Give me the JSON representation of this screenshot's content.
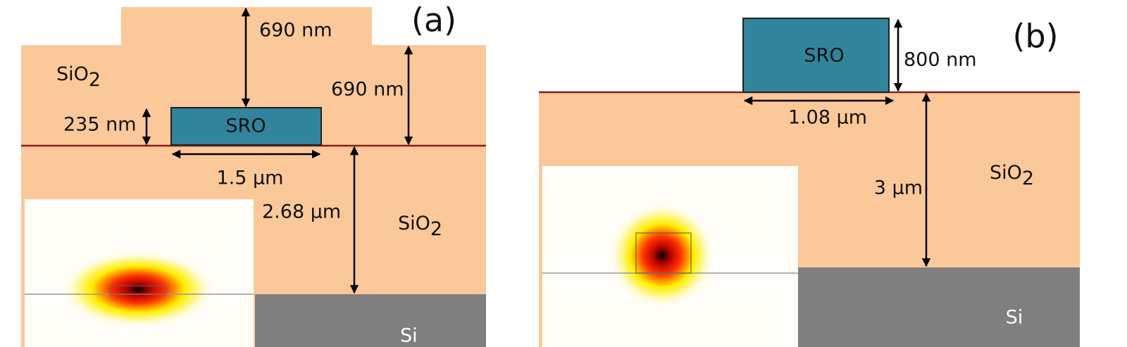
{
  "panel_a": {
    "label": "(a)",
    "top_cladding": "690 nm",
    "side_cladding": "690 nm",
    "sro_thickness": "235 nm",
    "core": "SRO",
    "core_width": "1.5 µm",
    "box_thickness": "2.68 µm",
    "upper_material": {
      "base": "SiO",
      "sub": "2"
    },
    "lower_material": {
      "base": "SiO",
      "sub": "2"
    },
    "substrate": "Si"
  },
  "panel_b": {
    "label": "(b)",
    "core": "SRO",
    "core_height": "800 nm",
    "core_width": "1.08 µm",
    "box_thickness": "3 µm",
    "material": {
      "base": "SiO",
      "sub": "2"
    },
    "substrate": "Si"
  }
}
